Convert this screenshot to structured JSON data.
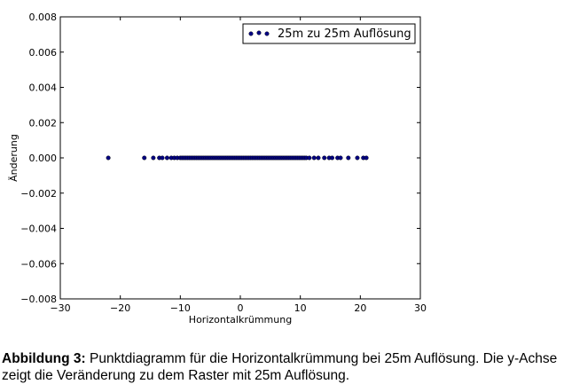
{
  "chart_data": {
    "type": "scatter",
    "xlabel": "Horizontalkrümmung",
    "ylabel": "Änderung",
    "xlim": [
      -30,
      30
    ],
    "ylim": [
      -0.008,
      0.008
    ],
    "xticks": [
      -30,
      -20,
      -10,
      0,
      10,
      20,
      30
    ],
    "xtick_labels": [
      "−30",
      "−20",
      "−10",
      "0",
      "10",
      "20",
      "30"
    ],
    "yticks": [
      -0.008,
      -0.006,
      -0.004,
      -0.002,
      0,
      0.002,
      0.004,
      0.006,
      0.008
    ],
    "ytick_labels": [
      "−0.008",
      "−0.006",
      "−0.004",
      "−0.002",
      "0.000",
      "0.002",
      "0.004",
      "0.006",
      "0.008"
    ],
    "grid": false,
    "legend_position": "top-right",
    "series": [
      {
        "name": "25m zu 25m Auflösung",
        "color": "#000080",
        "x": [
          -22,
          -16,
          -14.5,
          -13.5,
          -13,
          -12.2,
          -11.5,
          -11,
          -10.5,
          -10,
          -9.7,
          -9.4,
          -9.1,
          -8.8,
          -8.5,
          -8.2,
          -7.9,
          -7.6,
          -7.3,
          -7,
          -6.7,
          -6.4,
          -6.1,
          -5.8,
          -5.5,
          -5.2,
          -4.9,
          -4.6,
          -4.3,
          -4,
          -3.7,
          -3.4,
          -3.1,
          -2.8,
          -2.5,
          -2.2,
          -1.9,
          -1.6,
          -1.3,
          -1,
          -0.7,
          -0.4,
          -0.1,
          0.2,
          0.5,
          0.8,
          1.1,
          1.4,
          1.7,
          2,
          2.3,
          2.6,
          2.9,
          3.2,
          3.5,
          3.8,
          4.1,
          4.4,
          4.7,
          5,
          5.3,
          5.6,
          5.9,
          6.2,
          6.5,
          6.8,
          7.1,
          7.4,
          7.7,
          8,
          8.3,
          8.6,
          8.9,
          9.2,
          9.5,
          9.8,
          10.1,
          10.4,
          10.7,
          11,
          11.5,
          12.3,
          13,
          14,
          14.8,
          15.3,
          16.2,
          16.7,
          18,
          19.5,
          20.5,
          21
        ]
      }
    ]
  },
  "caption": {
    "label": "Abbildung 3:",
    "text": " Punktdiagramm für die Horizontalkrümmung bei 25m Auflösung. Die y-Achse zeigt die Veränderung zu dem Raster mit 25m Auflösung."
  }
}
